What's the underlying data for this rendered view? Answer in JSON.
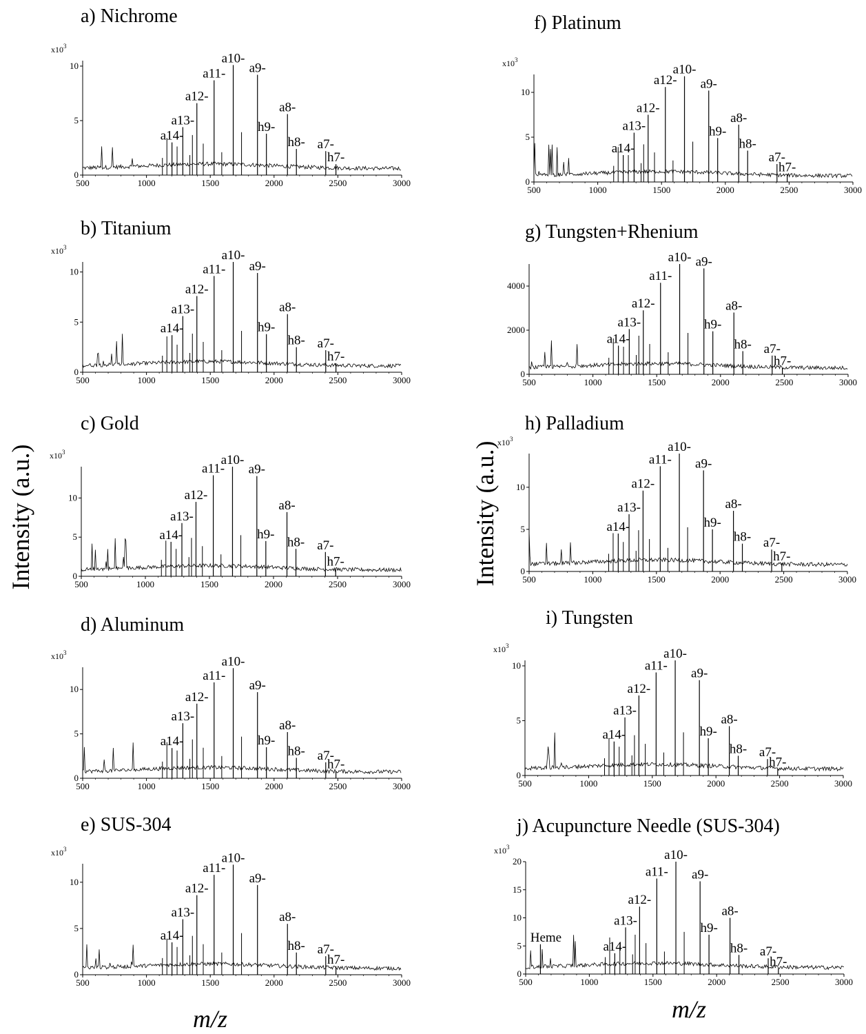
{
  "figure": {
    "ylabel": "Intensity (a.u.)",
    "xlabel": "m/z"
  },
  "chart_data": [
    {
      "type": "line",
      "title": "a) Nichrome",
      "multiplier": "x10",
      "multiplier_exp": "3",
      "xlim": [
        500,
        3000
      ],
      "ylim": [
        0,
        10.5
      ],
      "xticks": [
        500,
        1000,
        1500,
        2000,
        2500,
        3000
      ],
      "yticks": [
        0,
        5,
        10
      ],
      "noise_labels": [],
      "peaks": [
        {
          "label": "a14-",
          "x": 1200,
          "y": 3.0
        },
        {
          "label": "a13-",
          "x": 1285,
          "y": 4.4
        },
        {
          "label": "a12-",
          "x": 1395,
          "y": 6.6
        },
        {
          "label": "a11-",
          "x": 1530,
          "y": 8.7
        },
        {
          "label": "a10-",
          "x": 1680,
          "y": 10.1
        },
        {
          "label": "a9-",
          "x": 1870,
          "y": 9.2
        },
        {
          "label": "h9-",
          "x": 1940,
          "y": 3.8
        },
        {
          "label": "a8-",
          "x": 2105,
          "y": 5.6
        },
        {
          "label": "h8-",
          "x": 2175,
          "y": 2.4
        },
        {
          "label": "a7-",
          "x": 2405,
          "y": 2.2
        },
        {
          "label": "h7-",
          "x": 2485,
          "y": 1.0
        }
      ]
    },
    {
      "type": "line",
      "title": "b) Titanium",
      "multiplier": "x10",
      "multiplier_exp": "3",
      "xlim": [
        500,
        3000
      ],
      "ylim": [
        0,
        11
      ],
      "xticks": [
        500,
        1000,
        1500,
        2000,
        2500,
        3000
      ],
      "yticks": [
        0,
        5,
        10
      ],
      "noise_labels": [],
      "peaks": [
        {
          "label": "a14-",
          "x": 1200,
          "y": 3.7
        },
        {
          "label": "a13-",
          "x": 1285,
          "y": 5.6
        },
        {
          "label": "a12-",
          "x": 1395,
          "y": 7.6
        },
        {
          "label": "a11-",
          "x": 1530,
          "y": 9.6
        },
        {
          "label": "a10-",
          "x": 1680,
          "y": 11.0
        },
        {
          "label": "a9-",
          "x": 1870,
          "y": 9.9
        },
        {
          "label": "h9-",
          "x": 1940,
          "y": 3.8
        },
        {
          "label": "a8-",
          "x": 2105,
          "y": 5.8
        },
        {
          "label": "h8-",
          "x": 2175,
          "y": 2.5
        },
        {
          "label": "a7-",
          "x": 2405,
          "y": 2.2
        },
        {
          "label": "h7-",
          "x": 2485,
          "y": 0.9
        }
      ]
    },
    {
      "type": "line",
      "title": "c) Gold",
      "multiplier": "x10",
      "multiplier_exp": "3",
      "xlim": [
        500,
        3000
      ],
      "ylim": [
        0,
        14
      ],
      "xticks": [
        500,
        1000,
        1500,
        2000,
        2500,
        3000
      ],
      "yticks": [
        0,
        5,
        10
      ],
      "noise_labels": [],
      "peaks": [
        {
          "label": "a14-",
          "x": 1200,
          "y": 4.4
        },
        {
          "label": "a13-",
          "x": 1285,
          "y": 6.8
        },
        {
          "label": "a12-",
          "x": 1395,
          "y": 9.5
        },
        {
          "label": "a11-",
          "x": 1530,
          "y": 12.9
        },
        {
          "label": "a10-",
          "x": 1680,
          "y": 14.0
        },
        {
          "label": "a9-",
          "x": 1870,
          "y": 12.8
        },
        {
          "label": "h9-",
          "x": 1940,
          "y": 4.5
        },
        {
          "label": "a8-",
          "x": 2105,
          "y": 8.2
        },
        {
          "label": "h8-",
          "x": 2175,
          "y": 3.5
        },
        {
          "label": "a7-",
          "x": 2405,
          "y": 3.1
        },
        {
          "label": "h7-",
          "x": 2485,
          "y": 1.0
        }
      ]
    },
    {
      "type": "line",
      "title": "d) Aluminum",
      "multiplier": "x10",
      "multiplier_exp": "3",
      "xlim": [
        500,
        3000
      ],
      "ylim": [
        0,
        12.5
      ],
      "xticks": [
        500,
        1000,
        1500,
        2000,
        2500,
        3000
      ],
      "yticks": [
        0,
        5,
        10
      ],
      "noise_labels": [],
      "peaks": [
        {
          "label": "a14-",
          "x": 1200,
          "y": 3.4
        },
        {
          "label": "a13-",
          "x": 1285,
          "y": 6.2
        },
        {
          "label": "a12-",
          "x": 1395,
          "y": 8.4
        },
        {
          "label": "a11-",
          "x": 1530,
          "y": 10.8
        },
        {
          "label": "a10-",
          "x": 1680,
          "y": 12.4
        },
        {
          "label": "a9-",
          "x": 1870,
          "y": 9.7
        },
        {
          "label": "h9-",
          "x": 1940,
          "y": 3.5
        },
        {
          "label": "a8-",
          "x": 2105,
          "y": 5.2
        },
        {
          "label": "h8-",
          "x": 2175,
          "y": 2.3
        },
        {
          "label": "a7-",
          "x": 2405,
          "y": 1.8
        },
        {
          "label": "h7-",
          "x": 2485,
          "y": 0.8
        }
      ]
    },
    {
      "type": "line",
      "title": "e) SUS-304",
      "multiplier": "x10",
      "multiplier_exp": "3",
      "xlim": [
        500,
        3000
      ],
      "ylim": [
        0,
        12
      ],
      "xticks": [
        500,
        1000,
        1500,
        2000,
        2500,
        3000
      ],
      "yticks": [
        0,
        5,
        10
      ],
      "noise_labels": [],
      "peaks": [
        {
          "label": "a14-",
          "x": 1200,
          "y": 3.5
        },
        {
          "label": "a13-",
          "x": 1285,
          "y": 6.0
        },
        {
          "label": "a12-",
          "x": 1395,
          "y": 8.6
        },
        {
          "label": "a11-",
          "x": 1530,
          "y": 10.8
        },
        {
          "label": "a10-",
          "x": 1680,
          "y": 11.9
        },
        {
          "label": "a9-",
          "x": 1870,
          "y": 9.7
        },
        {
          "label": "a8-",
          "x": 2105,
          "y": 5.5
        },
        {
          "label": "h8-",
          "x": 2175,
          "y": 2.4
        },
        {
          "label": "a7-",
          "x": 2405,
          "y": 2.0
        },
        {
          "label": "h7-",
          "x": 2485,
          "y": 0.9
        }
      ]
    },
    {
      "type": "line",
      "title": "f) Platinum",
      "multiplier": "x10",
      "multiplier_exp": "3",
      "xlim": [
        500,
        3000
      ],
      "ylim": [
        0,
        12
      ],
      "xticks": [
        500,
        1000,
        1500,
        2000,
        2500,
        3000
      ],
      "yticks": [
        0,
        5,
        10
      ],
      "noise_labels": [],
      "peaks": [
        {
          "label": "a14-",
          "x": 1200,
          "y": 3.0
        },
        {
          "label": "a13-",
          "x": 1285,
          "y": 5.5
        },
        {
          "label": "a12-",
          "x": 1395,
          "y": 7.5
        },
        {
          "label": "a12-",
          "x": 1530,
          "y": 10.6
        },
        {
          "label": "a10-",
          "x": 1680,
          "y": 11.8
        },
        {
          "label": "a9-",
          "x": 1870,
          "y": 10.2
        },
        {
          "label": "h9-",
          "x": 1940,
          "y": 4.9
        },
        {
          "label": "a8-",
          "x": 2105,
          "y": 6.4
        },
        {
          "label": "h8-",
          "x": 2175,
          "y": 3.5
        },
        {
          "label": "a7-",
          "x": 2405,
          "y": 2.0
        },
        {
          "label": "h7-",
          "x": 2485,
          "y": 0.9
        }
      ]
    },
    {
      "type": "line",
      "title": "g) Tungsten+Rhenium",
      "multiplier": "",
      "multiplier_exp": "",
      "xlim": [
        500,
        3000
      ],
      "ylim": [
        0,
        5000
      ],
      "xticks": [
        500,
        1000,
        1500,
        2000,
        2500,
        3000
      ],
      "yticks": [
        0,
        2000,
        4000
      ],
      "noise_labels": [],
      "peaks": [
        {
          "label": "a14-",
          "x": 1200,
          "y": 1300
        },
        {
          "label": "a13-",
          "x": 1285,
          "y": 2050
        },
        {
          "label": "a12-",
          "x": 1395,
          "y": 2900
        },
        {
          "label": "a11-",
          "x": 1530,
          "y": 4150
        },
        {
          "label": "a10-",
          "x": 1680,
          "y": 5000
        },
        {
          "label": "a9-",
          "x": 1870,
          "y": 4800
        },
        {
          "label": "h9-",
          "x": 1940,
          "y": 1950
        },
        {
          "label": "a8-",
          "x": 2105,
          "y": 2800
        },
        {
          "label": "h8-",
          "x": 2175,
          "y": 1050
        },
        {
          "label": "a7-",
          "x": 2405,
          "y": 850
        },
        {
          "label": "h7-",
          "x": 2485,
          "y": 300
        }
      ]
    },
    {
      "type": "line",
      "title": "h) Palladium",
      "multiplier": "x10",
      "multiplier_exp": "3",
      "xlim": [
        500,
        3000
      ],
      "ylim": [
        0,
        14
      ],
      "xticks": [
        500,
        1000,
        1500,
        2000,
        2500,
        3000
      ],
      "yticks": [
        0,
        5,
        10
      ],
      "noise_labels": [],
      "peaks": [
        {
          "label": "a14-",
          "x": 1200,
          "y": 4.5
        },
        {
          "label": "a13-",
          "x": 1285,
          "y": 6.8
        },
        {
          "label": "a12-",
          "x": 1395,
          "y": 9.6
        },
        {
          "label": "a11-",
          "x": 1530,
          "y": 12.5
        },
        {
          "label": "a10-",
          "x": 1680,
          "y": 14.0
        },
        {
          "label": "a9-",
          "x": 1870,
          "y": 12.0
        },
        {
          "label": "h9-",
          "x": 1940,
          "y": 5.0
        },
        {
          "label": "a8-",
          "x": 2105,
          "y": 7.2
        },
        {
          "label": "h8-",
          "x": 2175,
          "y": 3.3
        },
        {
          "label": "a7-",
          "x": 2405,
          "y": 2.6
        },
        {
          "label": "h7-",
          "x": 2485,
          "y": 1.0
        }
      ]
    },
    {
      "type": "line",
      "title": "i) Tungsten",
      "multiplier": "x10",
      "multiplier_exp": "3",
      "xlim": [
        500,
        3000
      ],
      "ylim": [
        0,
        10.5
      ],
      "xticks": [
        500,
        1000,
        1500,
        2000,
        2500,
        3000
      ],
      "yticks": [
        0,
        5,
        10
      ],
      "noise_labels": [],
      "peaks": [
        {
          "label": "a14-",
          "x": 1200,
          "y": 3.1
        },
        {
          "label": "a13-",
          "x": 1285,
          "y": 5.3
        },
        {
          "label": "a12-",
          "x": 1395,
          "y": 7.3
        },
        {
          "label": "a11-",
          "x": 1530,
          "y": 9.4
        },
        {
          "label": "a10-",
          "x": 1680,
          "y": 10.5
        },
        {
          "label": "a9-",
          "x": 1870,
          "y": 8.7
        },
        {
          "label": "h9-",
          "x": 1940,
          "y": 3.4
        },
        {
          "label": "a8-",
          "x": 2105,
          "y": 4.5
        },
        {
          "label": "h8-",
          "x": 2175,
          "y": 1.8
        },
        {
          "label": "a7-",
          "x": 2405,
          "y": 1.5
        },
        {
          "label": "h7-",
          "x": 2485,
          "y": 0.6
        }
      ]
    },
    {
      "type": "line",
      "title": "j) Acupuncture Needle (SUS-304)",
      "multiplier": "x10",
      "multiplier_exp": "3",
      "xlim": [
        500,
        3000
      ],
      "ylim": [
        0,
        20
      ],
      "xticks": [
        500,
        1000,
        1500,
        2000,
        2500,
        3000
      ],
      "yticks": [
        0,
        5,
        10,
        15,
        20
      ],
      "noise_labels": [
        {
          "label": "Heme",
          "x": 616,
          "y": 5.3
        }
      ],
      "peaks": [
        {
          "label": "a14-",
          "x": 1200,
          "y": 3.7
        },
        {
          "label": "a13-",
          "x": 1285,
          "y": 8.3
        },
        {
          "label": "a12-",
          "x": 1395,
          "y": 12.0
        },
        {
          "label": "a11-",
          "x": 1530,
          "y": 17.0
        },
        {
          "label": "a10-",
          "x": 1680,
          "y": 20.0
        },
        {
          "label": "a9-",
          "x": 1870,
          "y": 16.5
        },
        {
          "label": "h9-",
          "x": 1940,
          "y": 7.0
        },
        {
          "label": "a8-",
          "x": 2105,
          "y": 10.0
        },
        {
          "label": "h8-",
          "x": 2175,
          "y": 3.4
        },
        {
          "label": "a7-",
          "x": 2405,
          "y": 2.8
        },
        {
          "label": "h7-",
          "x": 2485,
          "y": 1.0
        }
      ]
    }
  ]
}
